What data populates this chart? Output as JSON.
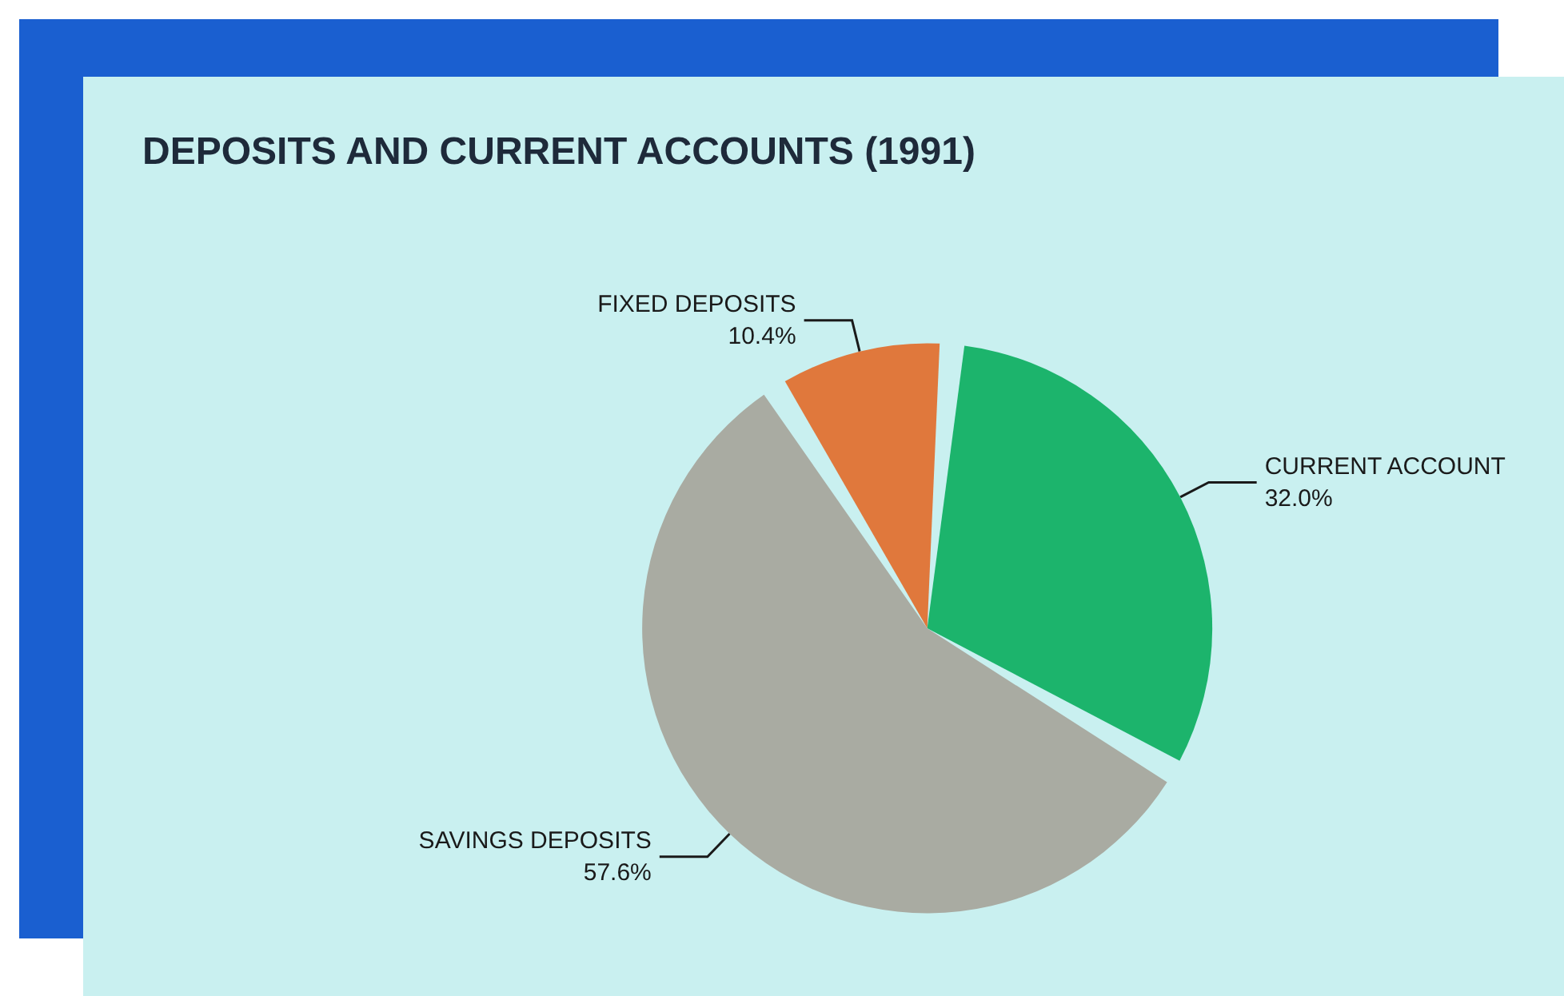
{
  "chart_data": {
    "type": "pie",
    "title": "DEPOSITS AND CURRENT ACCOUNTS (1991)",
    "categories": [
      "CURRENT ACCOUNT",
      "SAVINGS DEPOSITS",
      "FIXED DEPOSITS"
    ],
    "values": [
      32.0,
      57.6,
      10.4
    ],
    "value_labels": [
      "32.0%",
      "57.6%",
      "10.4%"
    ],
    "colors": [
      "#1cb46c",
      "#a9aba2",
      "#e0783c"
    ],
    "legend": false
  }
}
